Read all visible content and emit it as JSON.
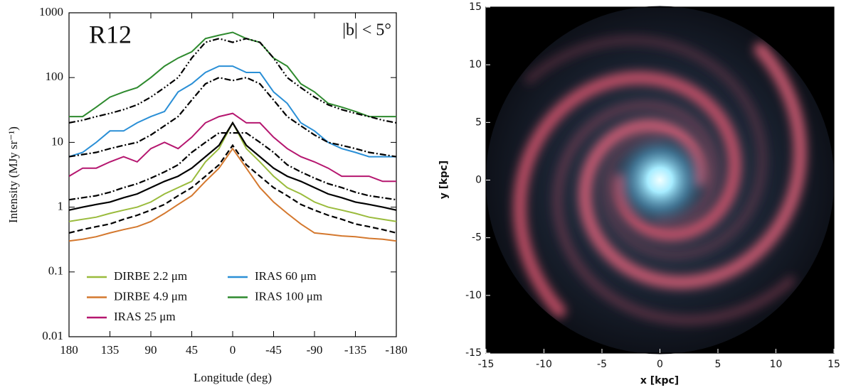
{
  "chart_data": [
    {
      "type": "line",
      "log_y": true,
      "annotations": [
        "R12",
        "|b| < 5°"
      ],
      "xlabel": "Longitude (deg)",
      "ylabel": "Intensity (MJy sr⁻¹)",
      "xlim": [
        180,
        -180
      ],
      "xticks": [
        180,
        135,
        90,
        45,
        0,
        -45,
        -90,
        -135,
        -180
      ],
      "ylim": [
        0.01,
        1000
      ],
      "yticks": [
        1000,
        100,
        10,
        1,
        0.1,
        0.01
      ],
      "x": [
        180,
        165,
        150,
        135,
        120,
        105,
        90,
        75,
        60,
        45,
        30,
        15,
        0,
        -15,
        -30,
        -45,
        -60,
        -75,
        -90,
        -105,
        -120,
        -135,
        -150,
        -165,
        -180
      ],
      "series": [
        {
          "name": "DIRBE 2.2 μm",
          "color": "#9abb3c",
          "values": [
            0.6,
            0.65,
            0.7,
            0.8,
            0.9,
            1.0,
            1.2,
            1.6,
            2,
            2.5,
            5,
            8,
            20,
            8,
            5,
            3,
            2,
            1.6,
            1.2,
            1.0,
            0.9,
            0.8,
            0.7,
            0.65,
            0.6
          ]
        },
        {
          "name": "DIRBE 4.9 μm",
          "color": "#d4782e",
          "values": [
            0.3,
            0.32,
            0.35,
            0.4,
            0.45,
            0.5,
            0.6,
            0.8,
            1.1,
            1.5,
            2.5,
            4,
            8,
            4,
            2,
            1.2,
            0.8,
            0.55,
            0.4,
            0.38,
            0.36,
            0.35,
            0.33,
            0.32,
            0.3
          ]
        },
        {
          "name": "IRAS 25 μm",
          "color": "#b5166f",
          "values": [
            3,
            4,
            4,
            5,
            6,
            5,
            8,
            10,
            8,
            12,
            20,
            25,
            28,
            20,
            20,
            12,
            8,
            6,
            5,
            4,
            3,
            3,
            3,
            2.5,
            2.5
          ]
        },
        {
          "name": "IRAS 60 μm",
          "color": "#2a8fd6",
          "values": [
            6,
            7,
            10,
            15,
            15,
            20,
            25,
            30,
            60,
            80,
            120,
            150,
            150,
            120,
            120,
            60,
            40,
            20,
            15,
            10,
            8,
            7,
            6,
            6,
            6
          ]
        },
        {
          "name": "IRAS 100 μm",
          "color": "#2e8a2e",
          "values": [
            25,
            25,
            35,
            50,
            60,
            70,
            100,
            150,
            200,
            250,
            400,
            450,
            500,
            400,
            350,
            200,
            150,
            80,
            60,
            40,
            35,
            30,
            25,
            25,
            25
          ]
        },
        {
          "color": "#000000",
          "dash": "none",
          "values": [
            0.9,
            1.0,
            1.1,
            1.2,
            1.4,
            1.6,
            2,
            2.5,
            3,
            4,
            6,
            9,
            20,
            9,
            6,
            4,
            3,
            2.5,
            2,
            1.6,
            1.4,
            1.2,
            1.1,
            1.0,
            0.9
          ]
        },
        {
          "color": "#000000",
          "dash": "8 4",
          "values": [
            0.4,
            0.45,
            0.5,
            0.55,
            0.65,
            0.75,
            0.9,
            1.1,
            1.5,
            2,
            3,
            4.5,
            9,
            4.5,
            3,
            2,
            1.5,
            1.1,
            0.9,
            0.75,
            0.65,
            0.55,
            0.5,
            0.45,
            0.4
          ]
        },
        {
          "color": "#000000",
          "dash": "9 3 2 3",
          "values": [
            1.3,
            1.4,
            1.5,
            1.7,
            2,
            2.3,
            2.8,
            3.5,
            4.5,
            7,
            10,
            14,
            14,
            14,
            10,
            7,
            4.5,
            3.5,
            2.8,
            2.3,
            2,
            1.7,
            1.5,
            1.4,
            1.3
          ]
        },
        {
          "color": "#000000",
          "dash": "9 3 2 3",
          "values": [
            6,
            6.5,
            7,
            8,
            9,
            10,
            13,
            18,
            25,
            45,
            80,
            100,
            90,
            100,
            80,
            45,
            25,
            18,
            13,
            10,
            9,
            8,
            7,
            6.5,
            6
          ]
        },
        {
          "color": "#000000",
          "dash": "9 3 2 3 2 3",
          "values": [
            20,
            22,
            25,
            28,
            32,
            38,
            50,
            70,
            100,
            200,
            350,
            400,
            350,
            400,
            350,
            200,
            100,
            70,
            50,
            38,
            32,
            28,
            25,
            22,
            20
          ]
        }
      ]
    },
    {
      "type": "image",
      "xlabel": "x [kpc]",
      "ylabel": "y [kpc]",
      "xlim": [
        -15,
        15
      ],
      "xticks": [
        -15,
        -10,
        -5,
        0,
        5,
        10,
        15
      ],
      "ylim": [
        -15,
        15
      ],
      "yticks": [
        -15,
        -10,
        -5,
        0,
        5,
        10,
        15
      ]
    }
  ]
}
